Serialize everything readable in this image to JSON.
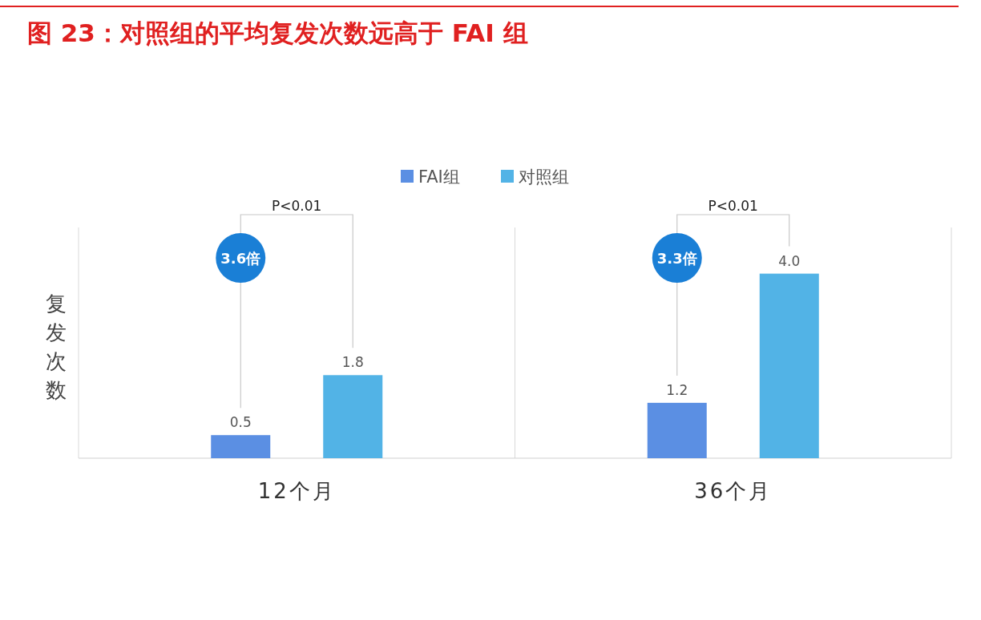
{
  "chart_data": {
    "type": "bar",
    "title": "图 23：对照组的平均复发次数远高于 FAI 组",
    "ylabel": "复发次数",
    "categories": [
      "12个月",
      "36个月"
    ],
    "series": [
      {
        "name": "FAI组",
        "color": "#5b8fe3",
        "values": [
          0.5,
          1.2
        ],
        "value_labels": [
          "0.5",
          "1.2"
        ]
      },
      {
        "name": "对照组",
        "color": "#52b3e6",
        "values": [
          1.8,
          4.0
        ],
        "value_labels": [
          "1.8",
          "4.0"
        ]
      }
    ],
    "ylim": [
      0,
      5
    ],
    "tick_labels": "x",
    "legend": "top",
    "annotations": [
      "P<0.01",
      "3.6倍",
      "P<0.01",
      "3.3倍"
    ]
  }
}
